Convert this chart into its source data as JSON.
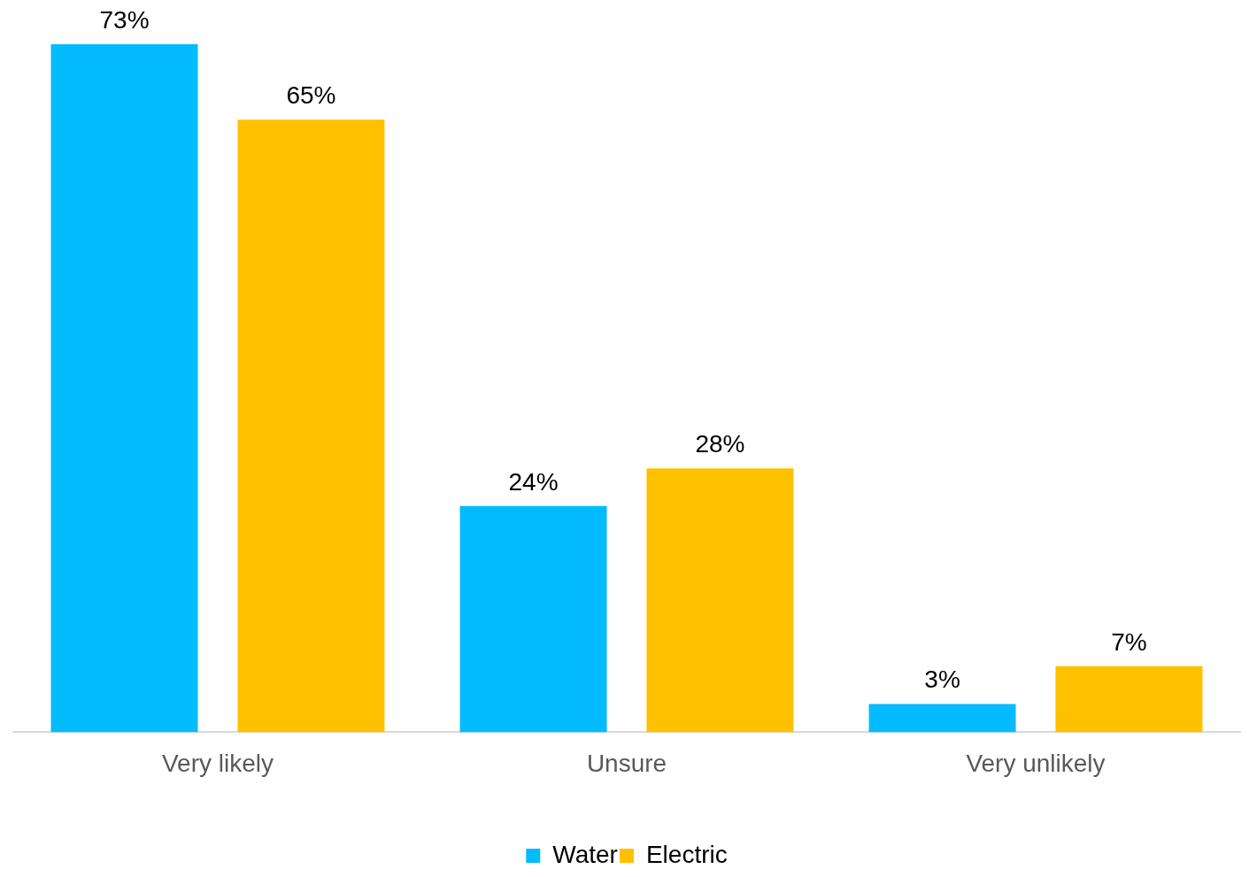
{
  "chart_data": {
    "type": "bar",
    "categories": [
      "Very likely",
      "Unsure",
      "Very unlikely"
    ],
    "series": [
      {
        "name": "Water",
        "color": "#05bbff",
        "values": [
          73,
          24,
          3
        ],
        "value_labels": [
          "73%",
          "24%",
          "3%"
        ]
      },
      {
        "name": "Electric",
        "color": "#ffc000",
        "values": [
          65,
          28,
          7
        ],
        "value_labels": [
          "65%",
          "28%",
          "7%"
        ]
      }
    ],
    "legend": "bottom"
  }
}
